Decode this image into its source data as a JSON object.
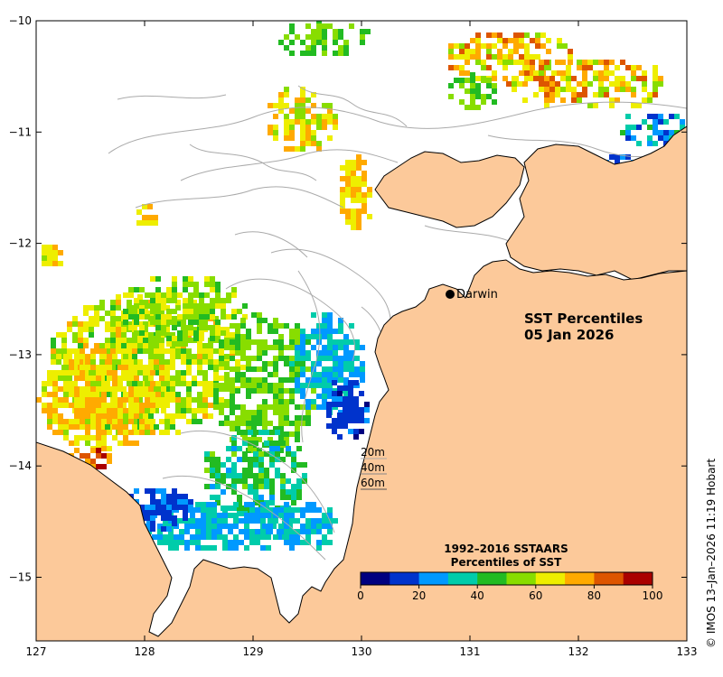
{
  "title": {
    "line1": "SST Percentiles",
    "line2": "05 Jan 2026"
  },
  "city": {
    "name": "Darwin"
  },
  "contour_legend": [
    "20m",
    "40m",
    "60m"
  ],
  "legend": {
    "title_line1": "1992–2016 SSTAARS",
    "title_line2": "Percentiles of SST",
    "ticks": [
      "0",
      "20",
      "40",
      "60",
      "80",
      "100"
    ],
    "colors": [
      "#000080",
      "#0033cc",
      "#0099ff",
      "#00ccaa",
      "#22bb22",
      "#88dd00",
      "#eeee00",
      "#ffaa00",
      "#dd5500",
      "#aa0000"
    ]
  },
  "axes": {
    "x_ticks": [
      "127",
      "128",
      "129",
      "130",
      "131",
      "132",
      "133"
    ],
    "y_ticks": [
      "−10",
      "−11",
      "−12",
      "−13",
      "−14",
      "−15"
    ]
  },
  "copyright": "© IMOS 13–Jan–2026 11:19 Hobart",
  "colors": {
    "land": "#fcc99a",
    "sea_nodata": "#ffffff",
    "contour": "#aaaaaa"
  }
}
